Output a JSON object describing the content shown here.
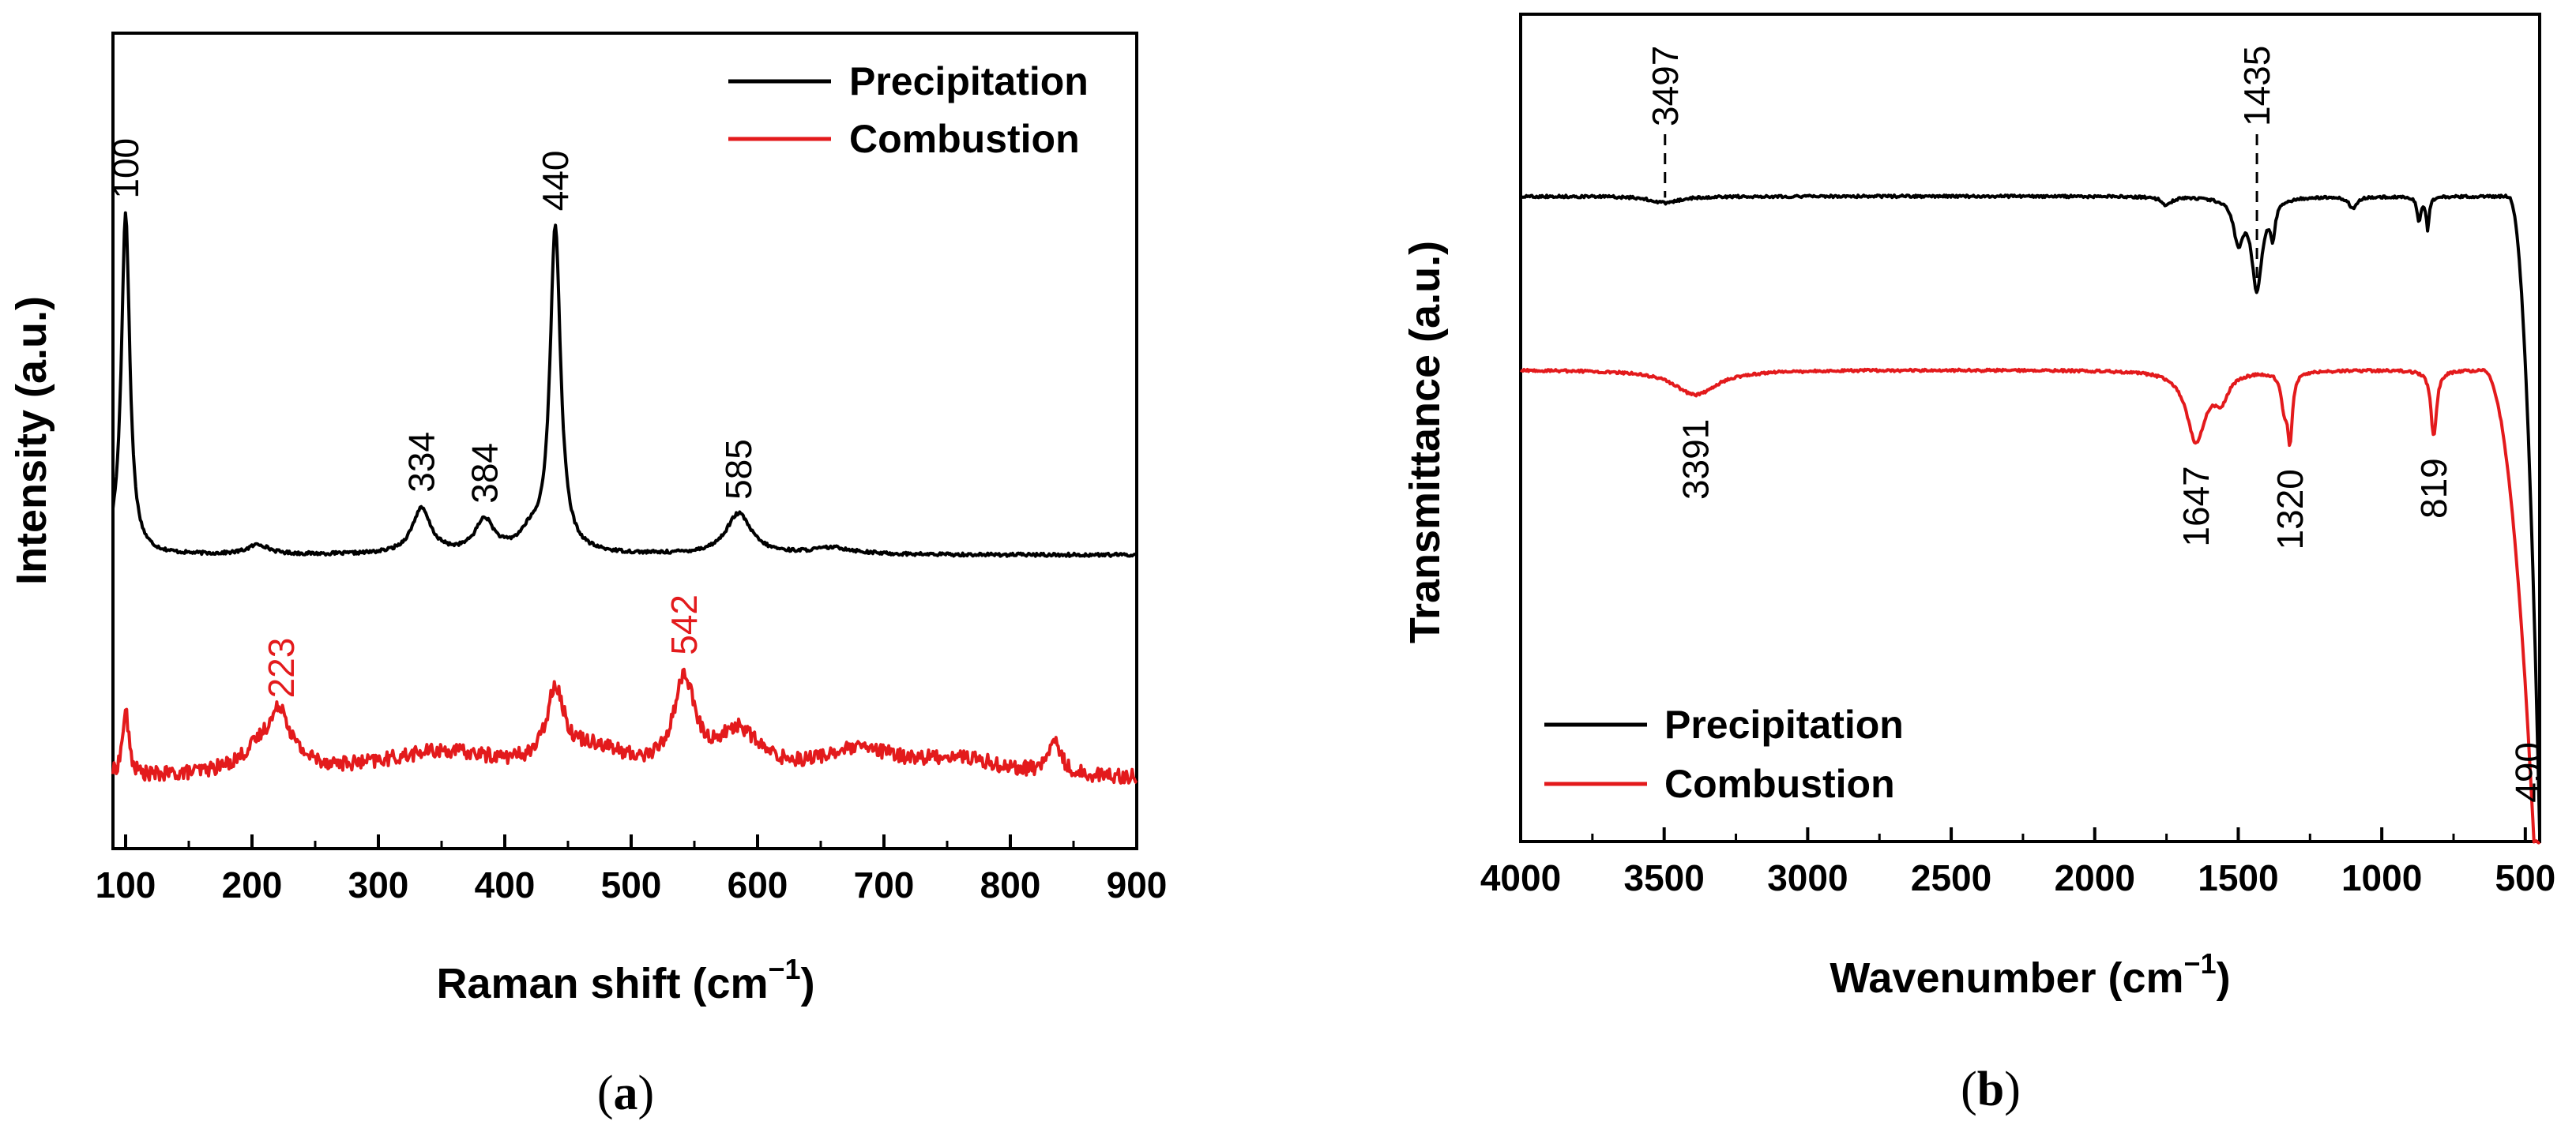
{
  "chart_data": [
    {
      "type": "line",
      "panel": "a",
      "caption": "a",
      "xlabel": "Raman shift (cm",
      "xlabel_sup": "−1",
      "ylabel": "Intensity (a.u.)",
      "xlim": [
        90,
        900
      ],
      "ylim": [
        0,
        1
      ],
      "xticks": [
        100,
        200,
        300,
        400,
        500,
        600,
        700,
        800,
        900
      ],
      "xtick_labels": [
        "100",
        "200",
        "300",
        "400",
        "500",
        "600",
        "700",
        "800",
        "900"
      ],
      "legend": [
        "Precipitation",
        "Combustion"
      ],
      "legend_position": "top-right",
      "series": [
        {
          "name": "Precipitation",
          "color": "#000000",
          "baseline": 0.36,
          "noise": 0.002,
          "peaks": [
            [
              100,
              0.42,
              4
            ],
            [
              205,
              0.012,
              10
            ],
            [
              334,
              0.055,
              9
            ],
            [
              384,
              0.04,
              9
            ],
            [
              420,
              0.02,
              10
            ],
            [
              440,
              0.4,
              5
            ],
            [
              585,
              0.05,
              12
            ],
            [
              660,
              0.008,
              20
            ]
          ]
        },
        {
          "name": "Combustion",
          "color": "#e31a1c",
          "baseline": 0.085,
          "noise": 0.009,
          "peaks": [
            [
              100,
              0.08,
              3
            ],
            [
              215,
              0.05,
              22
            ],
            [
              223,
              0.04,
              7
            ],
            [
              350,
              0.03,
              60
            ],
            [
              440,
              0.09,
              8
            ],
            [
              470,
              0.03,
              30
            ],
            [
              542,
              0.11,
              10
            ],
            [
              585,
              0.05,
              20
            ],
            [
              680,
              0.03,
              40
            ],
            [
              835,
              0.04,
              6
            ],
            [
              760,
              0.02,
              40
            ]
          ]
        }
      ],
      "annotations": [
        {
          "label": "100",
          "x": 100,
          "series": "Precipitation",
          "color": "#000000"
        },
        {
          "label": "334",
          "x": 334,
          "series": "Precipitation",
          "color": "#000000"
        },
        {
          "label": "384",
          "x": 384,
          "series": "Precipitation",
          "color": "#000000"
        },
        {
          "label": "440",
          "x": 440,
          "series": "Precipitation",
          "color": "#000000"
        },
        {
          "label": "585",
          "x": 585,
          "series": "Precipitation",
          "color": "#000000"
        },
        {
          "label": "223",
          "x": 223,
          "series": "Combustion",
          "color": "#e31a1c"
        },
        {
          "label": "542",
          "x": 542,
          "series": "Combustion",
          "color": "#e31a1c"
        }
      ]
    },
    {
      "type": "line",
      "panel": "b",
      "caption": "b",
      "xlabel": "Wavenumber (cm",
      "xlabel_sup": "−1",
      "ylabel": "Transmittance (a.u.)",
      "xlim": [
        4000,
        450
      ],
      "ylim": [
        0,
        1
      ],
      "xticks": [
        4000,
        3500,
        3000,
        2500,
        2000,
        1500,
        1000,
        500
      ],
      "xtick_labels": [
        "4000",
        "3500",
        "3000",
        "2500",
        "2000",
        "1500",
        "1000",
        "500"
      ],
      "legend": [
        "Precipitation",
        "Combustion"
      ],
      "legend_position": "bottom-left",
      "series": [
        {
          "name": "Precipitation",
          "color": "#000000",
          "baseline": 0.78,
          "noise": 0.0015,
          "dips": [
            [
              3497,
              0.008,
              60
            ],
            [
              1750,
              0.01,
              20
            ],
            [
              1500,
              0.05,
              20
            ],
            [
              1435,
              0.11,
              22
            ],
            [
              1380,
              0.04,
              10
            ],
            [
              1100,
              0.015,
              15
            ],
            [
              870,
              0.03,
              8
            ],
            [
              840,
              0.04,
              6
            ]
          ],
          "edge": {
            "start": 560,
            "end": 450,
            "drop": 0.77
          }
        },
        {
          "name": "Combustion",
          "color": "#e31a1c",
          "baseline": 0.57,
          "noise": 0.0015,
          "dips": [
            [
              3391,
              0.03,
              90
            ],
            [
              1647,
              0.085,
              40
            ],
            [
              1560,
              0.03,
              30
            ],
            [
              1340,
              0.04,
              12
            ],
            [
              1320,
              0.08,
              10
            ],
            [
              819,
              0.08,
              12
            ]
          ],
          "edge": {
            "start": 650,
            "end": 470,
            "drop": 0.57
          }
        }
      ],
      "annotations": [
        {
          "label": "3497",
          "x": 3497,
          "series": "Precipitation",
          "color": "#000000",
          "dashed": true
        },
        {
          "label": "1435",
          "x": 1435,
          "series": "Precipitation",
          "color": "#000000",
          "dashed": true
        },
        {
          "label": "3391",
          "x": 3391,
          "series": "Combustion",
          "color": "#000000"
        },
        {
          "label": "1647",
          "x": 1647,
          "series": "Combustion",
          "color": "#000000"
        },
        {
          "label": "1320",
          "x": 1320,
          "series": "Combustion",
          "color": "#000000"
        },
        {
          "label": "819",
          "x": 819,
          "series": "Combustion",
          "color": "#000000"
        },
        {
          "label": "490",
          "x": 490,
          "series": "Combustion",
          "color": "#000000"
        }
      ]
    }
  ]
}
